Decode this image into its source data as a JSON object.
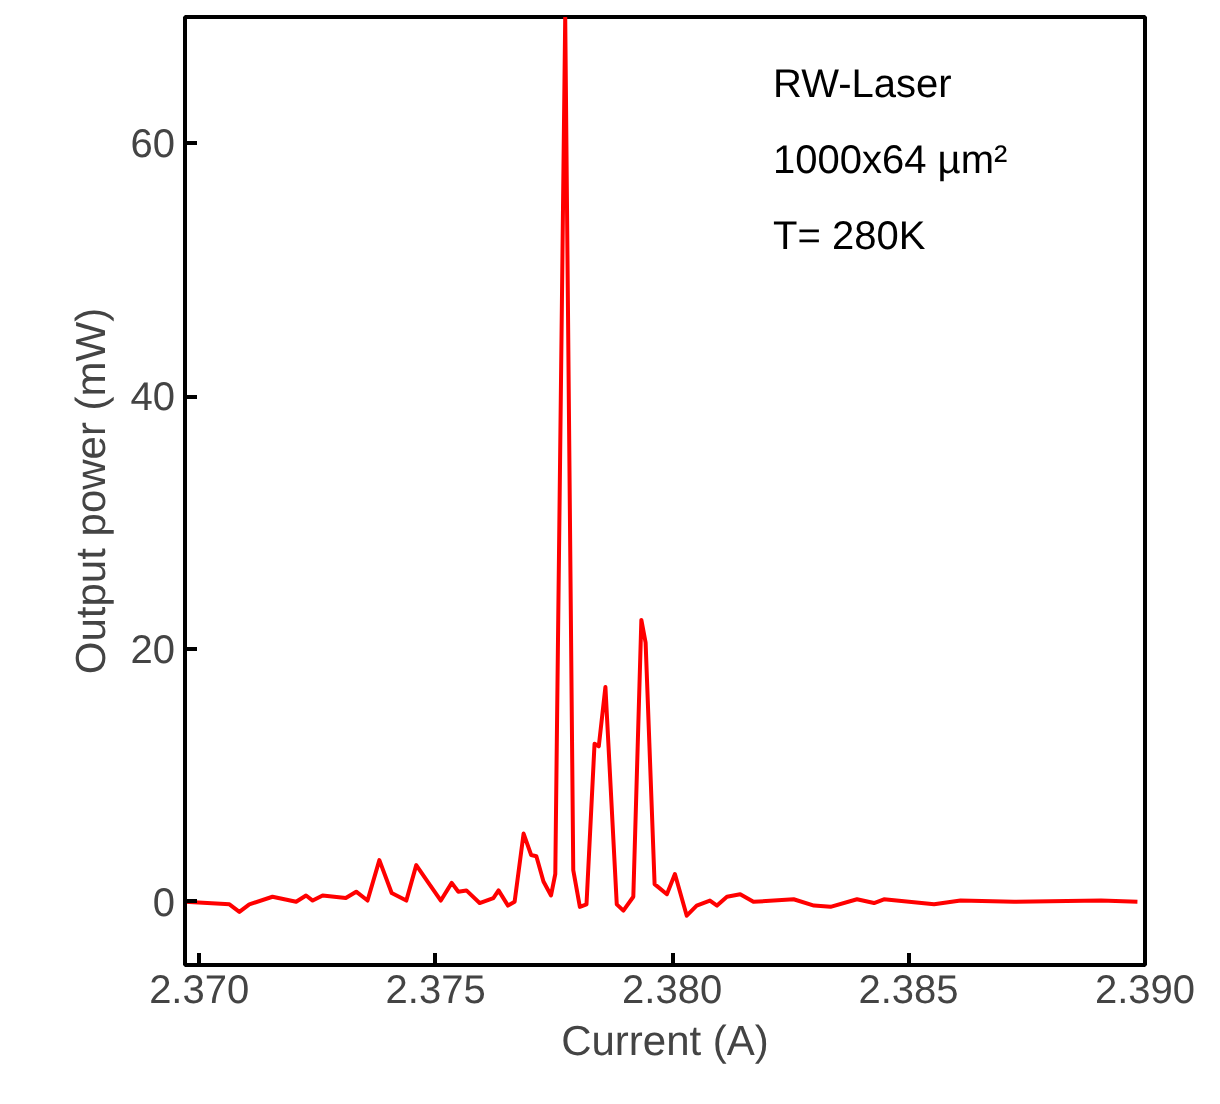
{
  "chart_data": {
    "type": "line",
    "xlabel": "Current (A)",
    "ylabel": "Output power (mW)",
    "annotations": [
      "RW-Laser",
      "1000x64 µm²",
      "T= 280K"
    ],
    "xlim": [
      2.3697,
      2.39
    ],
    "ylim": [
      -5,
      70
    ],
    "xticks": [
      {
        "value": 2.37,
        "label": "2.370"
      },
      {
        "value": 2.375,
        "label": "2.375"
      },
      {
        "value": 2.38,
        "label": "2.380"
      },
      {
        "value": 2.385,
        "label": "2.385"
      },
      {
        "value": 2.39,
        "label": "2.390"
      }
    ],
    "yticks": [
      0,
      20,
      40,
      60
    ],
    "grid": false,
    "marker": "none",
    "line_style": "solid",
    "series": [
      {
        "color": "#ff0000",
        "x": [
          2.3697,
          2.37064,
          2.37085,
          2.37106,
          2.37155,
          2.37205,
          2.37226,
          2.3724,
          2.37261,
          2.3731,
          2.37332,
          2.37356,
          2.37381,
          2.37407,
          2.37438,
          2.37459,
          2.37483,
          2.37511,
          2.37534,
          2.37548,
          2.37565,
          2.37593,
          2.37622,
          2.37633,
          2.37653,
          2.37667,
          2.37686,
          2.37702,
          2.37713,
          2.37728,
          2.37744,
          2.37753,
          2.37774,
          2.37791,
          2.37805,
          2.37819,
          2.37836,
          2.37845,
          2.37859,
          2.37883,
          2.37897,
          2.37918,
          2.37935,
          2.37944,
          2.37963,
          2.37989,
          2.38006,
          2.38031,
          2.38052,
          2.3808,
          2.38095,
          2.38116,
          2.38144,
          2.38172,
          2.38257,
          2.383,
          2.38335,
          2.38391,
          2.38427,
          2.38448,
          2.38554,
          2.3861,
          2.38723,
          2.38907,
          2.38984
        ],
        "values": [
          0,
          -0.2,
          -0.8,
          -0.2,
          0.4,
          0,
          0.5,
          0.1,
          0.5,
          0.3,
          0.8,
          0.1,
          3.3,
          0.7,
          0.1,
          2.9,
          1.6,
          0.1,
          1.5,
          0.8,
          0.9,
          -0.1,
          0.3,
          0.9,
          -0.3,
          0,
          5.4,
          3.7,
          3.6,
          1.6,
          0.5,
          2.2,
          70,
          2.5,
          -0.4,
          -0.2,
          12.5,
          12.3,
          17.0,
          -0.2,
          -0.7,
          0.4,
          22.3,
          20.5,
          1.4,
          0.6,
          2.2,
          -1.1,
          -0.3,
          0.1,
          -0.3,
          0.4,
          0.6,
          0,
          0.2,
          -0.3,
          -0.4,
          0.2,
          -0.1,
          0.2,
          -0.2,
          0.1,
          0,
          0.1,
          0
        ]
      }
    ]
  }
}
